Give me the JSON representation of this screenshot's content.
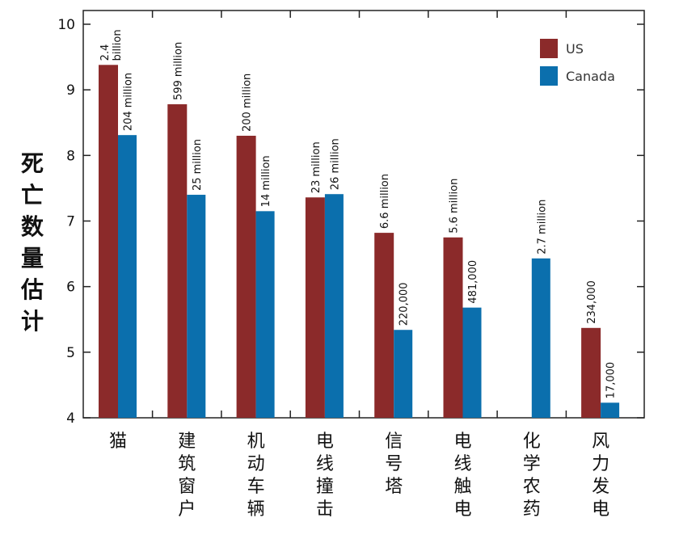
{
  "chart_data": {
    "type": "bar",
    "title": "",
    "xlabel": "",
    "ylabel": "死亡数量估计",
    "ylim": [
      4,
      10
    ],
    "yticks": [
      4,
      5,
      6,
      7,
      8,
      9,
      10
    ],
    "grid": false,
    "legend_placement": "top-right",
    "categories": [
      "猫",
      "建筑窗户",
      "机动车辆",
      "电线撞击",
      "信号塔",
      "电线触电",
      "化学农药",
      "风力发电"
    ],
    "series": [
      {
        "name": "US",
        "color": "#8B2A2A",
        "values": [
          9.38,
          8.78,
          8.3,
          7.36,
          6.82,
          6.75,
          null,
          5.37
        ],
        "labels": [
          "2.4 billion",
          "599 million",
          "200 million",
          "23 million",
          "6.6 million",
          "5.6 million",
          "",
          "234,000"
        ]
      },
      {
        "name": "Canada",
        "color": "#0B6FAD",
        "values": [
          8.31,
          7.4,
          7.15,
          7.41,
          5.34,
          5.68,
          6.43,
          4.23
        ],
        "labels": [
          "204 million",
          "25 million",
          "14 million",
          "26 million",
          "220,000",
          "481,000",
          "2.7 million",
          "17,000"
        ]
      }
    ]
  }
}
